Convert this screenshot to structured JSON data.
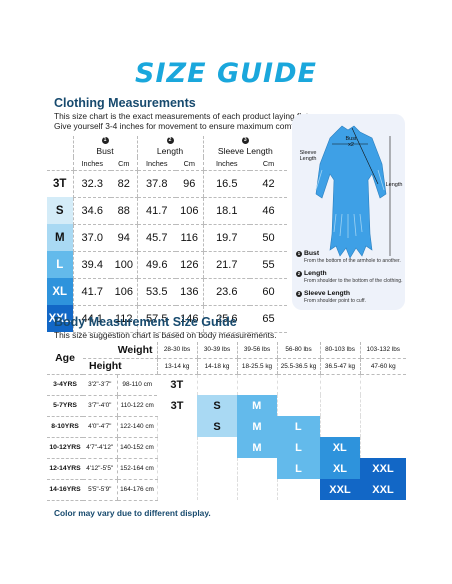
{
  "title": "SIZE GUIDE",
  "clothing": {
    "heading": "Clothing Measurements",
    "desc_line1": "This size chart is the exact measurements of each product laying flat.",
    "desc_line2": "Give yourself 3-4 inches for movement to ensure maximum comfort.",
    "groups": [
      {
        "num": "1",
        "name": "Bust"
      },
      {
        "num": "2",
        "name": "Length"
      },
      {
        "num": "3",
        "name": "Sleeve Length"
      }
    ],
    "unit_inches": "Inches",
    "unit_cm": "Cm",
    "rows": [
      {
        "size": "3T",
        "bust_in": "32.3",
        "bust_cm": "82",
        "len_in": "37.8",
        "len_cm": "96",
        "slv_in": "16.5",
        "slv_cm": "42"
      },
      {
        "size": "S",
        "bust_in": "34.6",
        "bust_cm": "88",
        "len_in": "41.7",
        "len_cm": "106",
        "slv_in": "18.1",
        "slv_cm": "46"
      },
      {
        "size": "M",
        "bust_in": "37.0",
        "bust_cm": "94",
        "len_in": "45.7",
        "len_cm": "116",
        "slv_in": "19.7",
        "slv_cm": "50"
      },
      {
        "size": "L",
        "bust_in": "39.4",
        "bust_cm": "100",
        "len_in": "49.6",
        "len_cm": "126",
        "slv_in": "21.7",
        "slv_cm": "55"
      },
      {
        "size": "XL",
        "bust_in": "41.7",
        "bust_cm": "106",
        "len_in": "53.5",
        "len_cm": "136",
        "slv_in": "23.6",
        "slv_cm": "60"
      },
      {
        "size": "XXL",
        "bust_in": "44.1",
        "bust_cm": "112",
        "len_in": "57.5",
        "len_cm": "146",
        "slv_in": "25.6",
        "slv_cm": "65"
      }
    ]
  },
  "diagram": {
    "bust_label": "Bust",
    "bust_sub": "x2",
    "sleeve_label_1": "Sleeve",
    "sleeve_label_2": "Length",
    "length_label": "Length",
    "legend": [
      {
        "num": "1",
        "title": "Bust",
        "desc": "From the bottom of the armhole to another."
      },
      {
        "num": "2",
        "title": "Length",
        "desc": "From shoulder to the bottom of the clothing."
      },
      {
        "num": "3",
        "title": "Sleeve Length",
        "desc": "From shoulder point to cuff."
      }
    ],
    "garment_color": "#3ea0e6"
  },
  "body": {
    "heading": "Body Measurement Size Guide",
    "desc": "This size suggestion chart is based on body measurements.",
    "weight_label": "Weight",
    "height_label": "Height",
    "age_label": "Age",
    "weights_lbs": [
      "28-30 lbs",
      "30-39 lbs",
      "39-56 lbs",
      "56-80 lbs",
      "80-103 lbs",
      "103-132 lbs"
    ],
    "weights_kg": [
      "13-14 kg",
      "14-18 kg",
      "18-25.5 kg",
      "25.5-36.5 kg",
      "36.5-47 kg",
      "47-60 kg"
    ],
    "rows": [
      {
        "age": "3-4YRS",
        "height_in": "3'2\"-3'7\"",
        "height_cm": "98-110 cm",
        "cells": [
          "3T",
          "",
          "",
          "",
          "",
          ""
        ]
      },
      {
        "age": "5-7YRS",
        "height_in": "3'7\"-4'0\"",
        "height_cm": "110-122 cm",
        "cells": [
          "3T",
          "S",
          "M",
          "",
          "",
          ""
        ]
      },
      {
        "age": "8-10YRS",
        "height_in": "4'0\"-4'7\"",
        "height_cm": "122-140 cm",
        "cells": [
          "",
          "S",
          "M",
          "L",
          "",
          ""
        ]
      },
      {
        "age": "10-12YRS",
        "height_in": "4'7\"-4'12\"",
        "height_cm": "140-152 cm",
        "cells": [
          "",
          "",
          "M",
          "L",
          "XL",
          ""
        ]
      },
      {
        "age": "12-14YRS",
        "height_in": "4'12\"-5'5\"",
        "height_cm": "152-164 cm",
        "cells": [
          "",
          "",
          "",
          "L",
          "XL",
          "XXL"
        ]
      },
      {
        "age": "14-16YRS",
        "height_in": "5'5\"-5'9\"",
        "height_cm": "164-176 cm",
        "cells": [
          "",
          "",
          "",
          "",
          "XXL",
          "XXL"
        ]
      }
    ],
    "size_colors": {
      "3T": "#ffffff",
      "S": "#a9d9f3",
      "M": "#63baeb",
      "L": "#63baeb",
      "XL": "#2e93dc",
      "XXL": "#1267c6"
    }
  },
  "note": "Color may vary due to different display.",
  "colors": {
    "title": "#1aa7dc",
    "heading": "#174a6e"
  }
}
